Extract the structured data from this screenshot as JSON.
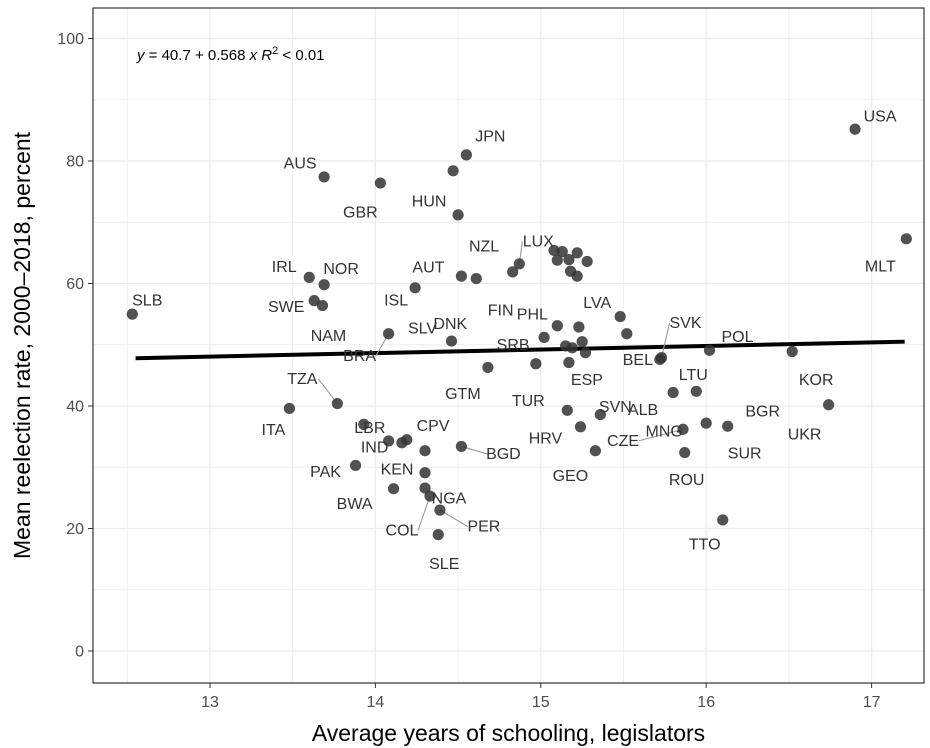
{
  "chart_data": {
    "type": "scatter",
    "title": "",
    "xlabel": "Average years of schooling, legislators",
    "ylabel": "Mean reelection rate, 2000–2018, percent",
    "xlim": [
      12.35,
      17.35
    ],
    "ylim": [
      -5,
      105
    ],
    "xticks": [
      13,
      14,
      15,
      16,
      17
    ],
    "yticks": [
      0,
      20,
      40,
      60,
      80,
      100
    ],
    "grid": true,
    "equation": {
      "y": "y",
      "intercept": "40.7",
      "slope": "0.568",
      "x": "x",
      "r2_label": "R",
      "r2_value": "< 0.01"
    },
    "fit_line": {
      "x": [
        12.55,
        17.2
      ],
      "y": [
        47.8,
        50.5
      ]
    },
    "points": [
      {
        "label": "SLB",
        "x": 12.53,
        "y": 55.0
      },
      {
        "label": "ITA",
        "x": 13.48,
        "y": 39.6
      },
      {
        "label": "AUS",
        "x": 13.69,
        "y": 77.4
      },
      {
        "label": "GBR",
        "x": 14.03,
        "y": 76.4
      },
      {
        "label": "HUN",
        "x": 14.47,
        "y": 78.4
      },
      {
        "label": "JPN",
        "x": 14.55,
        "y": 81.0
      },
      {
        "label": "NZL",
        "x": 14.5,
        "y": 71.2
      },
      {
        "label": "USA",
        "x": 16.9,
        "y": 85.2
      },
      {
        "label": "MLT",
        "x": 17.21,
        "y": 67.3
      },
      {
        "label": "IRL",
        "x": 13.6,
        "y": 61.0
      },
      {
        "label": "NOR",
        "x": 13.69,
        "y": 59.8
      },
      {
        "label": "SWE",
        "x": 13.63,
        "y": 57.2
      },
      {
        "label": "NAM",
        "x": 13.68,
        "y": 56.4
      },
      {
        "label": "ISL",
        "x": 14.24,
        "y": 59.3
      },
      {
        "label": "AUT",
        "x": 14.52,
        "y": 61.2
      },
      {
        "label": "DNK",
        "x": 14.61,
        "y": 60.8
      },
      {
        "label": "FIN",
        "x": 14.83,
        "y": 61.9
      },
      {
        "label": "LUX",
        "x": 14.87,
        "y": 63.2
      },
      {
        "label": "",
        "x": 15.08,
        "y": 65.4
      },
      {
        "label": "",
        "x": 15.13,
        "y": 65.2
      },
      {
        "label": "",
        "x": 15.22,
        "y": 65.0
      },
      {
        "label": "",
        "x": 15.1,
        "y": 63.8
      },
      {
        "label": "",
        "x": 15.17,
        "y": 63.9
      },
      {
        "label": "",
        "x": 15.28,
        "y": 63.6
      },
      {
        "label": "",
        "x": 15.18,
        "y": 62.0
      },
      {
        "label": "",
        "x": 15.22,
        "y": 61.2
      },
      {
        "label": "LVA",
        "x": 15.48,
        "y": 54.6
      },
      {
        "label": "PHL",
        "x": 15.1,
        "y": 53.1
      },
      {
        "label": "",
        "x": 15.23,
        "y": 52.9
      },
      {
        "label": "",
        "x": 15.52,
        "y": 51.8
      },
      {
        "label": "SRB",
        "x": 15.02,
        "y": 51.2
      },
      {
        "label": "",
        "x": 15.25,
        "y": 50.5
      },
      {
        "label": "",
        "x": 15.15,
        "y": 49.8
      },
      {
        "label": "",
        "x": 15.19,
        "y": 49.5
      },
      {
        "label": "",
        "x": 15.27,
        "y": 48.7
      },
      {
        "label": "ESP",
        "x": 15.17,
        "y": 47.1
      },
      {
        "label": "",
        "x": 14.97,
        "y": 46.9
      },
      {
        "label": "GTM",
        "x": 14.68,
        "y": 46.3
      },
      {
        "label": "SLV",
        "x": 14.46,
        "y": 50.6
      },
      {
        "label": "BRA",
        "x": 14.08,
        "y": 51.8
      },
      {
        "label": "BEL",
        "x": 15.72,
        "y": 47.6
      },
      {
        "label": "SVK",
        "x": 15.73,
        "y": 47.9
      },
      {
        "label": "POL",
        "x": 16.02,
        "y": 49.1
      },
      {
        "label": "KOR",
        "x": 16.52,
        "y": 48.9
      },
      {
        "label": "ALB",
        "x": 15.8,
        "y": 42.2
      },
      {
        "label": "LTU",
        "x": 15.94,
        "y": 42.4
      },
      {
        "label": "UKR",
        "x": 16.74,
        "y": 40.2
      },
      {
        "label": "TZA",
        "x": 13.77,
        "y": 40.4
      },
      {
        "label": "LBR",
        "x": 13.93,
        "y": 37.0
      },
      {
        "label": "IND",
        "x": 14.08,
        "y": 34.3
      },
      {
        "label": "",
        "x": 14.16,
        "y": 34.0
      },
      {
        "label": "",
        "x": 14.19,
        "y": 34.5
      },
      {
        "label": "CPV",
        "x": 14.3,
        "y": 32.7
      },
      {
        "label": "BGD",
        "x": 14.52,
        "y": 33.4
      },
      {
        "label": "PAK",
        "x": 13.88,
        "y": 30.3
      },
      {
        "label": "KEN",
        "x": 14.3,
        "y": 29.1
      },
      {
        "label": "BWA",
        "x": 14.11,
        "y": 26.5
      },
      {
        "label": "NGA",
        "x": 14.3,
        "y": 26.6
      },
      {
        "label": "COL",
        "x": 14.33,
        "y": 25.3
      },
      {
        "label": "PER",
        "x": 14.39,
        "y": 23.0
      },
      {
        "label": "SLE",
        "x": 14.38,
        "y": 19.0
      },
      {
        "label": "TUR",
        "x": 15.16,
        "y": 39.3
      },
      {
        "label": "SVN",
        "x": 15.36,
        "y": 38.6
      },
      {
        "label": "HRV",
        "x": 15.24,
        "y": 36.6
      },
      {
        "label": "GEO",
        "x": 15.33,
        "y": 32.7
      },
      {
        "label": "MNG",
        "x": 16.0,
        "y": 37.2
      },
      {
        "label": "BGR",
        "x": 16.13,
        "y": 36.7
      },
      {
        "label": "CZE",
        "x": 15.86,
        "y": 36.2
      },
      {
        "label": "SUR",
        "x": 16.13,
        "y": 36.7,
        "hidden": true
      },
      {
        "label": "ROU",
        "x": 15.87,
        "y": 32.4
      },
      {
        "label": "TTO",
        "x": 16.1,
        "y": 21.4
      }
    ]
  }
}
